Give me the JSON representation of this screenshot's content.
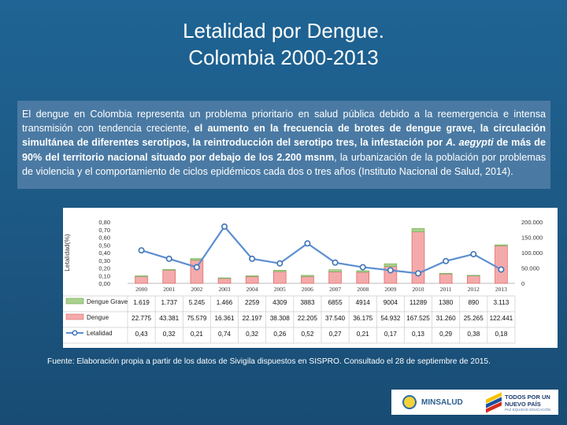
{
  "slide": {
    "title_line1": "Letalidad por Dengue.",
    "title_line2": "Colombia 2000-2013"
  },
  "paragraph": {
    "p1": "El dengue en Colombia representa un problema prioritario en salud pública debido a la reemergencia e intensa transmisión con tendencia creciente, ",
    "b1": "el aumento en la frecuencia de brotes de dengue grave, la circulación simultánea de diferentes serotipos, la reintroducción del serotipo tres, la infestación por ",
    "b_italic": "A. aegypti",
    "b2": " de más de 90% del territorio nacional situado por debajo de los 2.200 msnm",
    "p2": ", la urbanización de la población por problemas de violencia y el comportamiento de ciclos epidémicos cada dos o tres años (Instituto Nacional de Salud, 2014)."
  },
  "chart_data": {
    "type": "bar",
    "title": "",
    "categories": [
      "2000",
      "2001",
      "2002",
      "2003",
      "2004",
      "2005",
      "2006",
      "2007",
      "2008",
      "2009",
      "2010",
      "2011",
      "2012",
      "2013"
    ],
    "series": [
      {
        "name": "Dengue Grave",
        "color": "#a9d18e",
        "values": [
          1619,
          1737,
          5245,
          1466,
          2259,
          4309,
          3883,
          6855,
          4914,
          9004,
          11289,
          1380,
          890,
          3113
        ],
        "labels": [
          "1.619",
          "1.737",
          "5.245",
          "1.466",
          "2259",
          "4309",
          "3883",
          "6855",
          "4914",
          "9004",
          "11289",
          "1380",
          "890",
          "3.113"
        ]
      },
      {
        "name": "Dengue",
        "color": "#f4aaaa",
        "values": [
          22775,
          43381,
          75579,
          16361,
          22197,
          38308,
          22205,
          37540,
          36175,
          54932,
          167525,
          31260,
          25265,
          122441
        ],
        "labels": [
          "22.775",
          "43.381",
          "75.579",
          "16.361",
          "22.197",
          "38.308",
          "22.205",
          "37.540",
          "36.175",
          "54.932",
          "167.525",
          "31.260",
          "25.265",
          "122.441"
        ]
      },
      {
        "name": "Letalidad",
        "color": "#5b8fd1",
        "axis": "left",
        "values": [
          0.43,
          0.32,
          0.21,
          0.74,
          0.32,
          0.26,
          0.52,
          0.27,
          0.21,
          0.17,
          0.13,
          0.29,
          0.38,
          0.18
        ],
        "labels": [
          "0,43",
          "0,32",
          "0,21",
          "0,74",
          "0,32",
          "0,26",
          "0,52",
          "0,27",
          "0,21",
          "0,17",
          "0,13",
          "0,29",
          "0,38",
          "0,18"
        ]
      }
    ],
    "ylabel": "Letalidad(%)",
    "left_ylim": [
      0,
      0.8
    ],
    "left_ticks": [
      "0,80",
      "0,70",
      "0,60",
      "0,50",
      "0,40",
      "0,30",
      "0,20",
      "0,10",
      "0,00"
    ],
    "right_ylim": [
      0,
      200000
    ],
    "right_ticks": [
      "200.000",
      "150.000",
      "100.000",
      "50.000",
      "0"
    ],
    "grid": false,
    "legend": "data-table-below"
  },
  "source_note": "Fuente: Elaboración propia a partir de los datos de Sivigila dispuestos en SISPRO. Consultado el 28 de septiembre de 2015.",
  "footer": {
    "logo1_text": "MINSALUD",
    "logo2_line1": "TODOS POR UN",
    "logo2_line2": "NUEVO PAÍS",
    "logo2_line3": "PAZ   EQUIDAD   EDUCACIÓN"
  }
}
